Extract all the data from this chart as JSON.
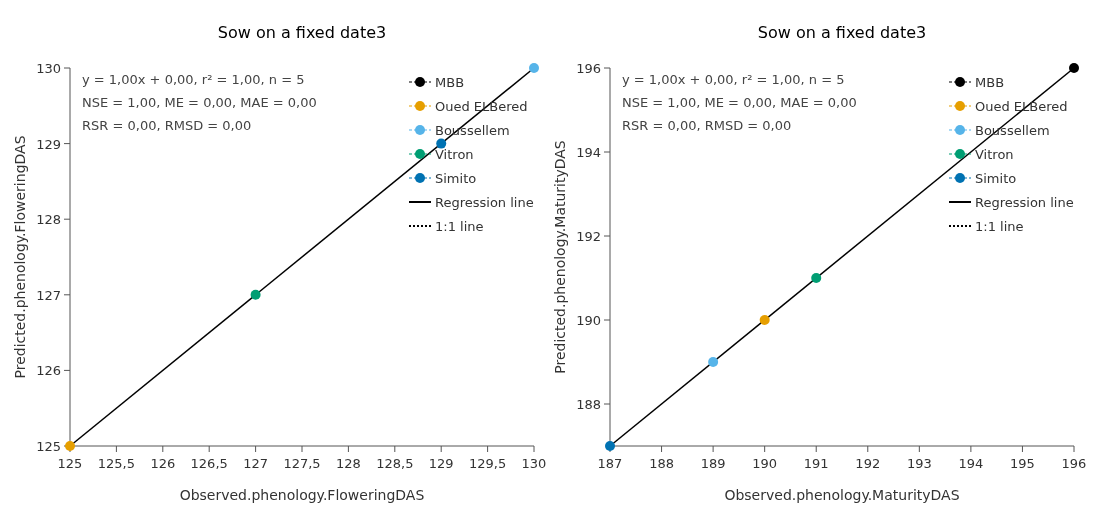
{
  "chart_data": [
    {
      "type": "scatter",
      "title": "Sow on a fixed date3",
      "xlabel": "Observed.phenology.FloweringDAS",
      "ylabel": "Predicted.phenology.FloweringDAS",
      "annotations": [
        "y = 1,00x + 0,00, r² = 1,00, n = 5",
        "NSE = 1,00, ME = 0,00, MAE = 0,00",
        "RSR = 0,00, RMSD = 0,00"
      ],
      "xlim": [
        125,
        130
      ],
      "ylim": [
        125,
        130
      ],
      "xticks": [
        125,
        {
          "value": 125.5,
          "label": "125,5"
        },
        126,
        {
          "value": 126.5,
          "label": "126,5"
        },
        127,
        {
          "value": 127.5,
          "label": "127,5"
        },
        128,
        {
          "value": 128.5,
          "label": "128,5"
        },
        129,
        {
          "value": 129.5,
          "label": "129,5"
        },
        130
      ],
      "yticks": [
        125,
        126,
        127,
        128,
        129,
        130
      ],
      "legend": "top right",
      "grid": false,
      "marker": "circle",
      "series": [
        {
          "name": "MBB",
          "color": "#000000"
        },
        {
          "name": "Oued ELBered",
          "color": "#e69f00",
          "x": [
            125
          ],
          "values": [
            125
          ]
        },
        {
          "name": "Boussellem",
          "color": "#56b4e9",
          "x": [
            130
          ],
          "values": [
            130
          ]
        },
        {
          "name": "Vitron",
          "color": "#009e73",
          "x": [
            127
          ],
          "values": [
            127
          ]
        },
        {
          "name": "Simito",
          "color": "#0072b2",
          "x": [
            129
          ],
          "values": [
            129
          ]
        },
        {
          "name": "Regression line",
          "type": "line",
          "marker": "none",
          "color": "#000000",
          "line_style": "solid",
          "x": [
            125,
            130
          ],
          "values": [
            125,
            130
          ]
        },
        {
          "name": "1:1 line",
          "type": "line",
          "marker": "none",
          "color": "#000000",
          "line_style": "dotted"
        }
      ]
    },
    {
      "type": "scatter",
      "title": "Sow on a fixed date3",
      "xlabel": "Observed.phenology.MaturityDAS",
      "ylabel": "Predicted.phenology.MaturityDAS",
      "annotations": [
        "y = 1,00x + 0,00, r² = 1,00, n = 5",
        "NSE = 1,00, ME = 0,00, MAE = 0,00",
        "RSR = 0,00, RMSD = 0,00"
      ],
      "xlim": [
        187,
        196
      ],
      "ylim": [
        187,
        196
      ],
      "xticks": [
        187,
        188,
        189,
        190,
        191,
        192,
        193,
        194,
        195,
        196
      ],
      "yticks": [
        188,
        190,
        192,
        194,
        196
      ],
      "legend": "top right",
      "grid": false,
      "marker": "circle",
      "series": [
        {
          "name": "MBB",
          "color": "#000000",
          "x": [
            196
          ],
          "values": [
            196
          ]
        },
        {
          "name": "Oued ELBered",
          "color": "#e69f00",
          "x": [
            190
          ],
          "values": [
            190
          ]
        },
        {
          "name": "Boussellem",
          "color": "#56b4e9",
          "x": [
            189
          ],
          "values": [
            189
          ]
        },
        {
          "name": "Vitron",
          "color": "#009e73",
          "x": [
            191
          ],
          "values": [
            191
          ]
        },
        {
          "name": "Simito",
          "color": "#0072b2",
          "x": [
            187
          ],
          "values": [
            187
          ]
        },
        {
          "name": "Regression line",
          "type": "line",
          "marker": "none",
          "color": "#000000",
          "line_style": "solid",
          "x": [
            187,
            196
          ],
          "values": [
            187,
            196
          ]
        },
        {
          "name": "1:1 line",
          "type": "line",
          "marker": "none",
          "color": "#000000",
          "line_style": "dotted"
        }
      ]
    }
  ]
}
